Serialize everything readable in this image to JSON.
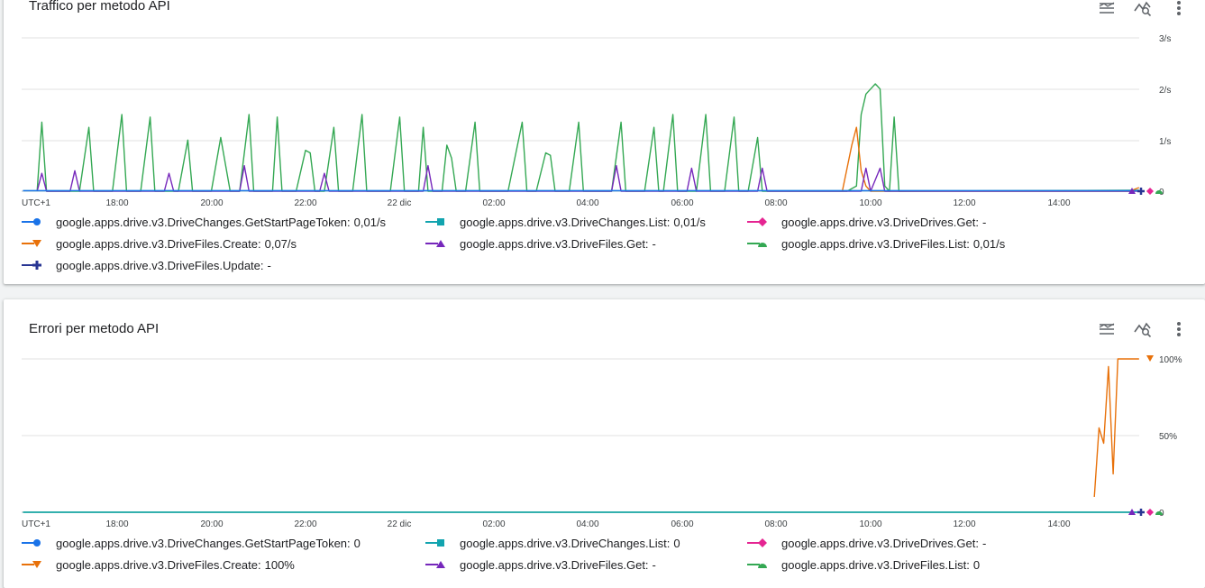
{
  "colors": {
    "blue": "#1a73e8",
    "teal": "#12a4af",
    "magenta": "#e52592",
    "orange": "#e8710a",
    "purple": "#7627bb",
    "green": "#34a853",
    "navy": "#283593",
    "grid": "#e0e0e0"
  },
  "x_ticks": [
    "UTC+1",
    "18:00",
    "20:00",
    "22:00",
    "22 dic",
    "02:00",
    "04:00",
    "06:00",
    "08:00",
    "10:00",
    "12:00",
    "14:00"
  ],
  "traffic": {
    "title": "Traffico per metodo API",
    "y_ticks": [
      "3/s",
      "2/s",
      "1/s",
      "0"
    ],
    "legend": [
      {
        "name": "google.apps.drive.v3.DriveChanges.GetStartPageToken:",
        "value": "0,01/s",
        "color": "#1a73e8",
        "marker": "circle"
      },
      {
        "name": "google.apps.drive.v3.DriveChanges.List:",
        "value": "0,01/s",
        "color": "#12a4af",
        "marker": "square"
      },
      {
        "name": "google.apps.drive.v3.DriveDrives.Get:",
        "value": "-",
        "color": "#e52592",
        "marker": "diamond"
      },
      {
        "name": "google.apps.drive.v3.DriveFiles.Create:",
        "value": "0,07/s",
        "color": "#e8710a",
        "marker": "triangle-down"
      },
      {
        "name": "google.apps.drive.v3.DriveFiles.Get:",
        "value": "-",
        "color": "#7627bb",
        "marker": "triangle-up"
      },
      {
        "name": "google.apps.drive.v3.DriveFiles.List:",
        "value": "0,01/s",
        "color": "#34a853",
        "marker": "half-circle"
      },
      {
        "name": "google.apps.drive.v3.DriveFiles.Update:",
        "value": "-",
        "color": "#283593",
        "marker": "plus"
      }
    ]
  },
  "errors": {
    "title": "Errori per metodo API",
    "y_ticks": [
      "100%",
      "50%",
      "0"
    ],
    "legend": [
      {
        "name": "google.apps.drive.v3.DriveChanges.GetStartPageToken:",
        "value": "0",
        "color": "#1a73e8",
        "marker": "circle"
      },
      {
        "name": "google.apps.drive.v3.DriveChanges.List:",
        "value": "0",
        "color": "#12a4af",
        "marker": "square"
      },
      {
        "name": "google.apps.drive.v3.DriveDrives.Get:",
        "value": "-",
        "color": "#e52592",
        "marker": "diamond"
      },
      {
        "name": "google.apps.drive.v3.DriveFiles.Create:",
        "value": "100%",
        "color": "#e8710a",
        "marker": "triangle-down"
      },
      {
        "name": "google.apps.drive.v3.DriveFiles.Get:",
        "value": "-",
        "color": "#7627bb",
        "marker": "triangle-up"
      },
      {
        "name": "google.apps.drive.v3.DriveFiles.List:",
        "value": "0",
        "color": "#34a853",
        "marker": "half-circle"
      }
    ]
  },
  "chart_data": [
    {
      "type": "line",
      "title": "Traffico per metodo API",
      "ylim": [
        0,
        3
      ],
      "y_unit": "/s",
      "x_range_hours": [
        16.0,
        15.7
      ],
      "series": [
        {
          "name": "google.apps.drive.v3.DriveFiles.List",
          "color": "#34a853",
          "points": [
            [
              16.3,
              0
            ],
            [
              16.4,
              1.35
            ],
            [
              16.5,
              0
            ],
            [
              17.2,
              0
            ],
            [
              17.4,
              1.25
            ],
            [
              17.5,
              0
            ],
            [
              17.9,
              0
            ],
            [
              18.1,
              1.5
            ],
            [
              18.2,
              0
            ],
            [
              18.5,
              0
            ],
            [
              18.7,
              1.45
            ],
            [
              18.8,
              0
            ],
            [
              19.0,
              0
            ],
            [
              19.3,
              0
            ],
            [
              19.5,
              1.0
            ],
            [
              19.6,
              0
            ],
            [
              20.0,
              0
            ],
            [
              20.2,
              1.05
            ],
            [
              20.4,
              0
            ],
            [
              20.6,
              0
            ],
            [
              20.8,
              1.5
            ],
            [
              20.9,
              0
            ],
            [
              21.3,
              0
            ],
            [
              21.4,
              1.45
            ],
            [
              21.5,
              0
            ],
            [
              21.8,
              0
            ],
            [
              22.0,
              0.8
            ],
            [
              22.1,
              0.75
            ],
            [
              22.2,
              0
            ],
            [
              22.4,
              0
            ],
            [
              22.6,
              1.25
            ],
            [
              22.7,
              0
            ],
            [
              23.0,
              0
            ],
            [
              23.2,
              1.5
            ],
            [
              23.3,
              0
            ],
            [
              23.8,
              0
            ],
            [
              24.0,
              1.45
            ],
            [
              24.1,
              0
            ],
            [
              24.4,
              0
            ],
            [
              24.5,
              1.25
            ],
            [
              24.6,
              0
            ],
            [
              24.9,
              0
            ],
            [
              25.0,
              0.9
            ],
            [
              25.1,
              0.65
            ],
            [
              25.2,
              0
            ],
            [
              25.4,
              0
            ],
            [
              25.6,
              1.35
            ],
            [
              25.7,
              0
            ],
            [
              26.3,
              0
            ],
            [
              26.6,
              1.35
            ],
            [
              26.7,
              0
            ],
            [
              26.9,
              0
            ],
            [
              27.1,
              0.75
            ],
            [
              27.2,
              0.7
            ],
            [
              27.3,
              0
            ],
            [
              27.6,
              0
            ],
            [
              27.8,
              1.35
            ],
            [
              27.9,
              0
            ],
            [
              28.5,
              0
            ],
            [
              28.7,
              1.35
            ],
            [
              28.8,
              0
            ],
            [
              29.2,
              0
            ],
            [
              29.4,
              1.25
            ],
            [
              29.5,
              0
            ],
            [
              29.6,
              0
            ],
            [
              29.8,
              1.5
            ],
            [
              29.9,
              0
            ],
            [
              30.3,
              0
            ],
            [
              30.5,
              1.5
            ],
            [
              30.6,
              0
            ],
            [
              30.9,
              0
            ],
            [
              31.1,
              1.45
            ],
            [
              31.2,
              0
            ],
            [
              31.4,
              0
            ],
            [
              31.6,
              1.05
            ],
            [
              31.7,
              0
            ],
            [
              33.5,
              0
            ],
            [
              33.7,
              0.1
            ],
            [
              33.8,
              1.5
            ],
            [
              33.9,
              1.9
            ],
            [
              34.0,
              2.0
            ],
            [
              34.1,
              2.1
            ],
            [
              34.2,
              2.0
            ],
            [
              34.3,
              0.1
            ],
            [
              34.4,
              0
            ],
            [
              34.5,
              1.45
            ],
            [
              34.6,
              0
            ],
            [
              39.7,
              0.02
            ]
          ]
        },
        {
          "name": "google.apps.drive.v3.DriveFiles.Create",
          "color": "#e8710a",
          "points": [
            [
              33.4,
              0
            ],
            [
              33.6,
              0.9
            ],
            [
              33.7,
              1.25
            ],
            [
              33.8,
              0.4
            ],
            [
              33.9,
              0.1
            ],
            [
              34.0,
              0
            ],
            [
              39.5,
              0
            ],
            [
              39.7,
              0.07
            ]
          ]
        },
        {
          "name": "google.apps.drive.v3.DriveFiles.Get",
          "color": "#7627bb",
          "points": [
            [
              16.3,
              0
            ],
            [
              16.4,
              0.35
            ],
            [
              16.5,
              0
            ],
            [
              17.0,
              0
            ],
            [
              17.1,
              0.4
            ],
            [
              17.2,
              0
            ],
            [
              19.0,
              0
            ],
            [
              19.1,
              0.35
            ],
            [
              19.2,
              0
            ],
            [
              20.6,
              0
            ],
            [
              20.7,
              0.5
            ],
            [
              20.8,
              0
            ],
            [
              22.3,
              0
            ],
            [
              22.4,
              0.35
            ],
            [
              22.5,
              0
            ],
            [
              24.5,
              0
            ],
            [
              24.6,
              0.5
            ],
            [
              24.7,
              0
            ],
            [
              28.5,
              0
            ],
            [
              28.6,
              0.5
            ],
            [
              28.7,
              0
            ],
            [
              30.1,
              0
            ],
            [
              30.2,
              0.45
            ],
            [
              30.3,
              0
            ],
            [
              31.6,
              0
            ],
            [
              31.7,
              0.45
            ],
            [
              31.8,
              0
            ],
            [
              33.8,
              0
            ],
            [
              33.9,
              0.45
            ],
            [
              34.0,
              0
            ],
            [
              34.2,
              0.45
            ],
            [
              34.3,
              0
            ],
            [
              39.7,
              0
            ]
          ]
        },
        {
          "name": "google.apps.drive.v3.DriveChanges.List",
          "color": "#12a4af",
          "points": [
            [
              16.0,
              0.01
            ],
            [
              39.7,
              0.01
            ]
          ]
        },
        {
          "name": "google.apps.drive.v3.DriveChanges.GetStartPageToken",
          "color": "#1a73e8",
          "points": [
            [
              16.0,
              0.01
            ],
            [
              39.7,
              0.01
            ]
          ]
        }
      ]
    },
    {
      "type": "line",
      "title": "Errori per metodo API",
      "ylim": [
        0,
        100
      ],
      "y_unit": "%",
      "x_range_hours": [
        16.0,
        15.7
      ],
      "series": [
        {
          "name": "google.apps.drive.v3.DriveFiles.Create",
          "color": "#e8710a",
          "points": [
            [
              38.75,
              10
            ],
            [
              38.85,
              55
            ],
            [
              38.95,
              45
            ],
            [
              39.05,
              95
            ],
            [
              39.15,
              25
            ],
            [
              39.25,
              100
            ],
            [
              39.7,
              100
            ]
          ]
        },
        {
          "name": "google.apps.drive.v3.DriveFiles.List",
          "color": "#34a853",
          "points": [
            [
              16.0,
              0
            ],
            [
              39.7,
              0
            ]
          ]
        },
        {
          "name": "google.apps.drive.v3.DriveChanges.List",
          "color": "#12a4af",
          "points": [
            [
              16.0,
              0
            ],
            [
              39.7,
              0
            ]
          ]
        }
      ]
    }
  ]
}
